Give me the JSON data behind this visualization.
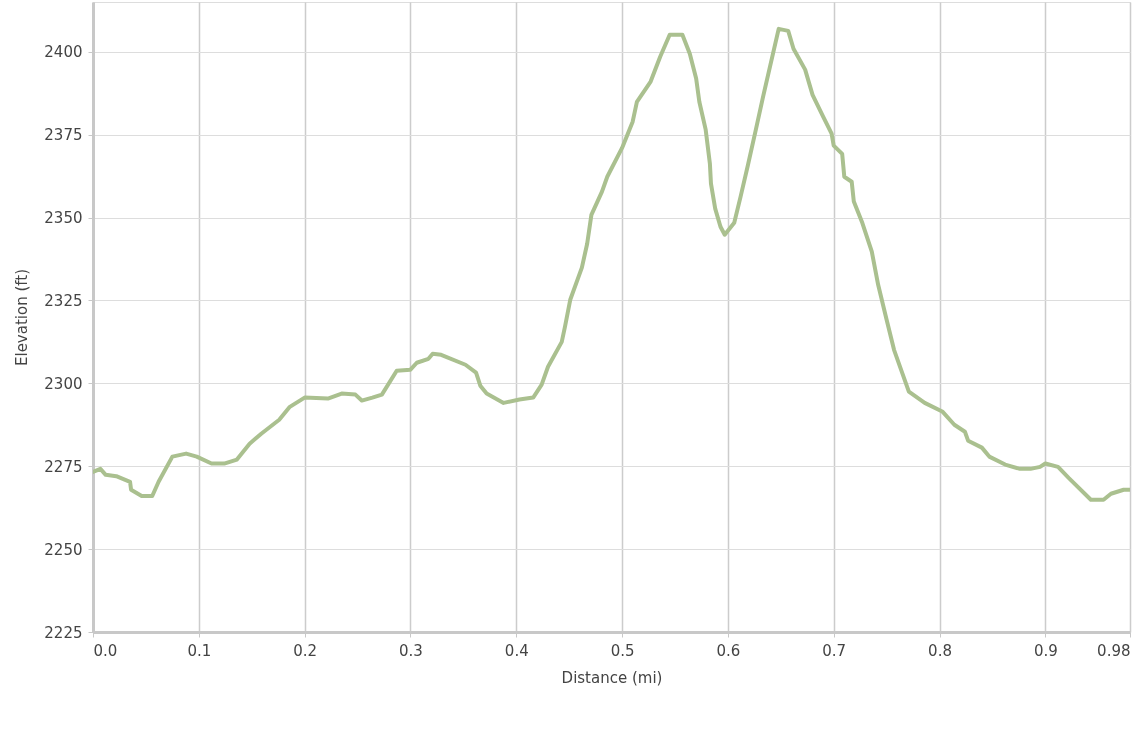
{
  "chart_data": {
    "type": "line",
    "xlabel": "Distance (mi)",
    "ylabel": "Elevation (ft)",
    "xlim": [
      0,
      0.98
    ],
    "ylim": [
      2225,
      2415
    ],
    "xticks": [
      {
        "value": 0,
        "label": "0.0"
      },
      0.1,
      0.2,
      0.3,
      0.4,
      0.5,
      0.6,
      0.7,
      0.8,
      0.9,
      0.98
    ],
    "yticks": [
      2225,
      2250,
      2275,
      2300,
      2325,
      2350,
      2375,
      2400
    ],
    "grid": true,
    "marker": "none",
    "line_style": "solid",
    "series": [
      {
        "color": "#aac08f",
        "x": [
          0,
          0.007,
          0.012,
          0.022,
          0.035,
          0.036,
          0.046,
          0.056,
          0.062,
          0.075,
          0.088,
          0.098,
          0.112,
          0.124,
          0.136,
          0.148,
          0.159,
          0.176,
          0.186,
          0.2,
          0.222,
          0.235,
          0.248,
          0.254,
          0.264,
          0.273,
          0.287,
          0.3,
          0.306,
          0.317,
          0.321,
          0.329,
          0.352,
          0.362,
          0.366,
          0.372,
          0.388,
          0.403,
          0.416,
          0.424,
          0.43,
          0.443,
          0.446,
          0.451,
          0.462,
          0.467,
          0.471,
          0.481,
          0.486,
          0.5,
          0.51,
          0.514,
          0.527,
          0.536,
          0.545,
          0.557,
          0.564,
          0.57,
          0.573,
          0.579,
          0.583,
          0.584,
          0.588,
          0.593,
          0.597,
          0.606,
          0.612,
          0.619,
          0.626,
          0.633,
          0.648,
          0.657,
          0.662,
          0.673,
          0.68,
          0.69,
          0.698,
          0.7,
          0.708,
          0.71,
          0.717,
          0.719,
          0.727,
          0.736,
          0.742,
          0.75,
          0.757,
          0.771,
          0.786,
          0.803,
          0.814,
          0.824,
          0.827,
          0.84,
          0.847,
          0.862,
          0.876,
          0.886,
          0.895,
          0.9,
          0.912,
          0.922,
          0.943,
          0.955,
          0.962,
          0.974,
          0.98
        ],
        "values": [
          2273.3,
          2274.2,
          2272.4,
          2272,
          2270.3,
          2267.9,
          2266,
          2266,
          2270.3,
          2277.9,
          2278.8,
          2277.9,
          2275.8,
          2275.8,
          2277,
          2281.8,
          2284.8,
          2289,
          2292.9,
          2295.7,
          2295.4,
          2296.9,
          2296.6,
          2294.8,
          2295.7,
          2296.6,
          2303.8,
          2304.1,
          2306.2,
          2307.4,
          2308.9,
          2308.6,
          2305.6,
          2303.2,
          2299.3,
          2296.9,
          2294.1,
          2295.1,
          2295.7,
          2299.6,
          2305,
          2312.5,
          2317,
          2325.2,
          2334.9,
          2342.1,
          2350.8,
          2357.8,
          2362.3,
          2371,
          2378.9,
          2384.9,
          2391,
          2398.5,
          2405.1,
          2405.1,
          2399.4,
          2391.9,
          2384.9,
          2376.5,
          2366.2,
          2360.2,
          2352.7,
          2347.2,
          2344.8,
          2348.4,
          2356.3,
          2365.9,
          2375.9,
          2386.1,
          2406.9,
          2406.3,
          2400.9,
          2394.6,
          2387,
          2380.4,
          2375.3,
          2371.7,
          2369.2,
          2362.3,
          2360.8,
          2354.8,
          2348.4,
          2339.7,
          2329.7,
          2319.2,
          2310.1,
          2297.5,
          2294.1,
          2291.4,
          2287.5,
          2285.4,
          2282.7,
          2280.6,
          2277.9,
          2275.5,
          2274.2,
          2274.2,
          2274.8,
          2275.8,
          2274.8,
          2271.5,
          2264.9,
          2264.9,
          2266.7,
          2267.9,
          2267.9
        ]
      }
    ]
  }
}
